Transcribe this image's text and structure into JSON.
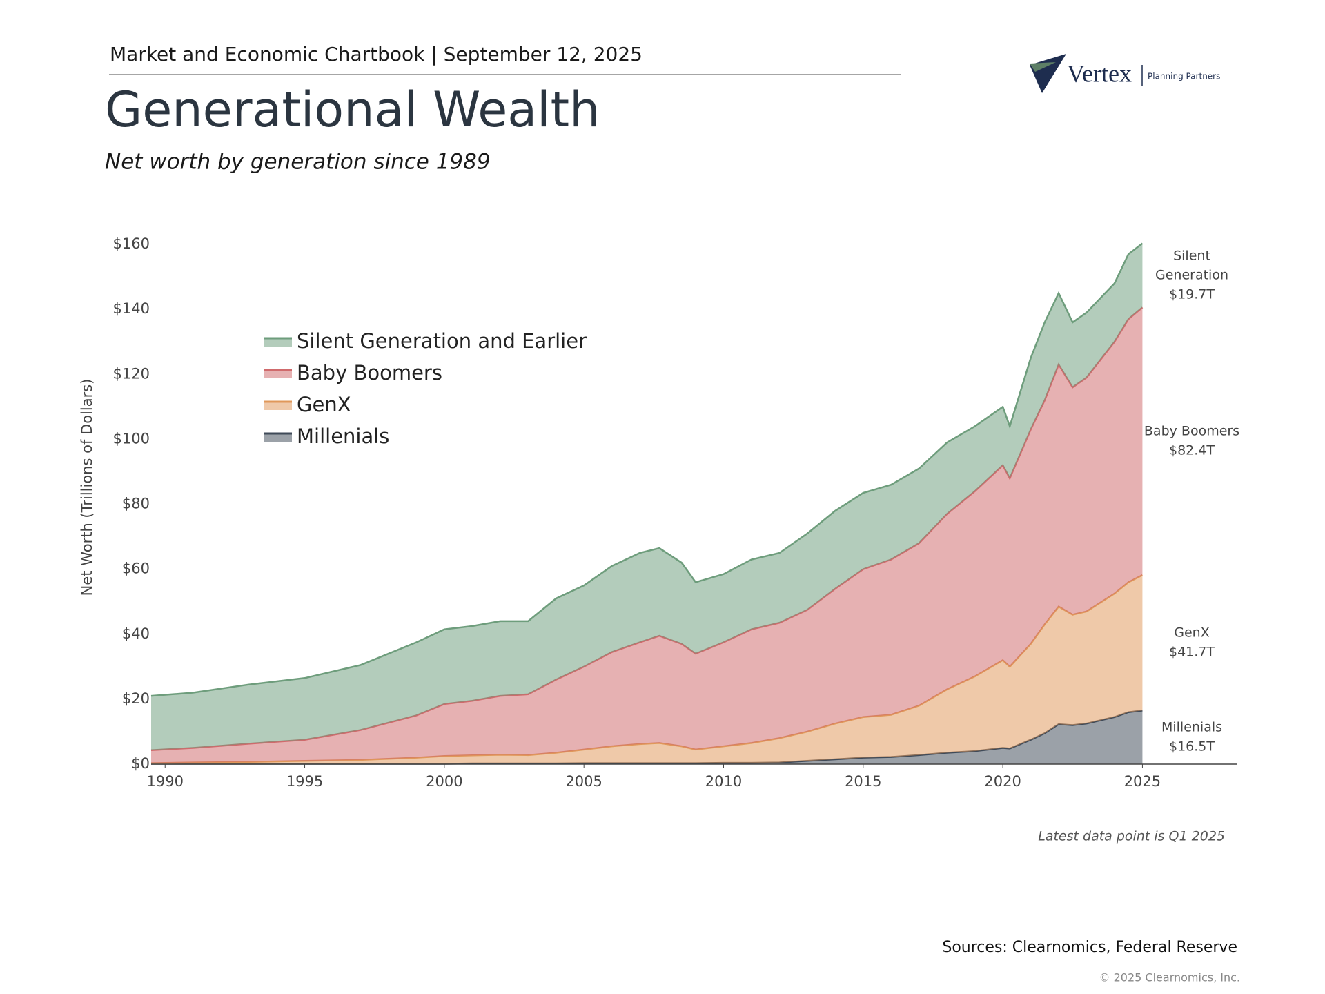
{
  "header": "Market and Economic Chartbook | September 12, 2025",
  "logo": {
    "name": "Vertex",
    "tagline": "Planning Partners"
  },
  "chart_data": {
    "type": "stacked_area",
    "title": "Generational Wealth",
    "subtitle": "Net worth by generation since 1989",
    "y_label": "Net Worth (Trillions of Dollars)",
    "x": [
      1989.5,
      1991,
      1993,
      1995,
      1997,
      1999,
      2000,
      2001,
      2002,
      2003,
      2004,
      2005,
      2006,
      2007,
      2007.7,
      2008.5,
      2009,
      2010,
      2011,
      2012,
      2013,
      2014,
      2015,
      2016,
      2017,
      2018,
      2019,
      2020,
      2020.25,
      2021,
      2021.5,
      2022,
      2022.5,
      2023,
      2024,
      2024.5,
      2025
    ],
    "xlim": [
      1989.5,
      2028.4
    ],
    "xticks": [
      1990,
      1995,
      2000,
      2005,
      2010,
      2015,
      2020,
      2025
    ],
    "ylim": [
      0,
      160
    ],
    "yticks": [
      {
        "value": 0,
        "label": "$0"
      },
      {
        "value": 20,
        "label": "$20"
      },
      {
        "value": 40,
        "label": "$40"
      },
      {
        "value": 60,
        "label": "$60"
      },
      {
        "value": 80,
        "label": "$80"
      },
      {
        "value": 100,
        "label": "$100"
      },
      {
        "value": 120,
        "label": "$120"
      },
      {
        "value": 140,
        "label": "$140"
      },
      {
        "value": 160,
        "label": "$160"
      }
    ],
    "legend": "upper left",
    "series": [
      {
        "name": "Silent Generation and Earlier",
        "color": "#6e9d7c",
        "end_label": "Silent Generation",
        "value_label": "$19.7T",
        "values": [
          16.7,
          17.0,
          18.2,
          19.0,
          20.0,
          22.5,
          23.0,
          23.0,
          23.0,
          22.5,
          25.0,
          25.0,
          26.5,
          27.5,
          27.0,
          25.0,
          22.0,
          21.0,
          21.5,
          21.5,
          23.5,
          24.0,
          23.5,
          23.0,
          23.0,
          22.0,
          20.0,
          18.0,
          16.0,
          22.0,
          24.0,
          22.0,
          20.0,
          20.0,
          18.0,
          20.0,
          19.7
        ]
      },
      {
        "name": "Baby Boomers",
        "color": "#d06a6c",
        "end_label": "Baby Boomers",
        "value_label": "$82.4T",
        "values": [
          4.0,
          4.5,
          5.6,
          6.5,
          9.2,
          13.0,
          16.0,
          16.8,
          18.1,
          18.7,
          22.5,
          25.5,
          29.0,
          31.3,
          33.0,
          31.5,
          29.5,
          32.0,
          35.0,
          35.5,
          37.5,
          41.5,
          45.5,
          47.8,
          50.0,
          54.0,
          57.0,
          60.0,
          58.0,
          66.0,
          69.0,
          74.5,
          70.0,
          72.0,
          77.5,
          81.0,
          82.4
        ]
      },
      {
        "name": "GenX",
        "color": "#e0985a",
        "end_label": "GenX",
        "value_label": "$41.7T",
        "values": [
          0.2,
          0.4,
          0.6,
          0.9,
          1.2,
          1.9,
          2.4,
          2.5,
          2.7,
          2.6,
          3.3,
          4.2,
          5.2,
          5.9,
          6.2,
          5.2,
          4.2,
          5.1,
          6.1,
          7.5,
          9.0,
          11.0,
          12.5,
          13.0,
          15.2,
          19.5,
          23.0,
          27.0,
          25.2,
          29.5,
          33.5,
          36.2,
          34.0,
          34.5,
          38.0,
          40.0,
          41.7
        ]
      },
      {
        "name": "Millenials",
        "color": "#3f4a58",
        "end_label": "Millenials",
        "value_label": "$16.5T",
        "values": [
          0.1,
          0.1,
          0.1,
          0.1,
          0.1,
          0.1,
          0.1,
          0.2,
          0.2,
          0.2,
          0.2,
          0.3,
          0.3,
          0.3,
          0.3,
          0.3,
          0.3,
          0.4,
          0.4,
          0.5,
          1.0,
          1.5,
          2.0,
          2.2,
          2.8,
          3.5,
          4.0,
          5.0,
          4.8,
          7.5,
          9.5,
          12.3,
          12.0,
          12.5,
          14.5,
          16.0,
          16.5
        ]
      }
    ],
    "note": "Latest data point is Q1 2025"
  },
  "footer": {
    "sources": "Sources: Clearnomics, Federal Reserve",
    "copyright": "© 2025 Clearnomics, Inc."
  }
}
